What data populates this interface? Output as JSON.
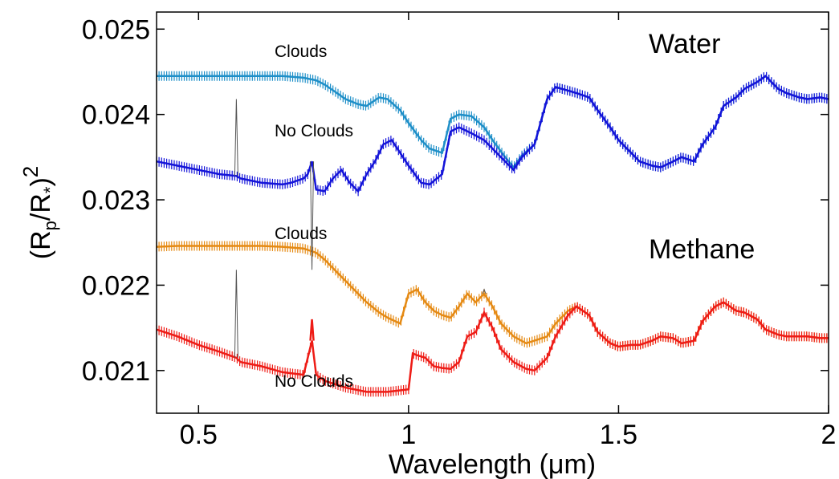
{
  "chart_data": {
    "type": "line",
    "title": "",
    "xlabel": "Wavelength (μm)",
    "ylabel": "(R_p/R_*)^2",
    "xlim": [
      0.4,
      2.0
    ],
    "ylim": [
      0.0205,
      0.0252
    ],
    "xticks": [
      0.5,
      1,
      1.5,
      2
    ],
    "xtick_labels": [
      "0.5",
      "1",
      "1.5",
      "2"
    ],
    "yticks": [
      0.021,
      0.022,
      0.023,
      0.024,
      0.025
    ],
    "ytick_labels": [
      "0.021",
      "0.022",
      "0.023",
      "0.024",
      "0.025"
    ],
    "grid": false,
    "legend": "none",
    "annotations": {
      "water": "Water",
      "methane": "Methane",
      "water_clouds": "Clouds",
      "water_no_clouds": "No Clouds",
      "methane_clouds": "Clouds",
      "methane_no_clouds": "No Clouds"
    },
    "series": [
      {
        "id": "water-clouds",
        "color": "#1e8fc8",
        "x": [
          0.4,
          0.45,
          0.5,
          0.55,
          0.6,
          0.65,
          0.7,
          0.75,
          0.78,
          0.8,
          0.83,
          0.85,
          0.88,
          0.9,
          0.93,
          0.95,
          0.98,
          1.0,
          1.03,
          1.05,
          1.08,
          1.1,
          1.12,
          1.15,
          1.18,
          1.2,
          1.23,
          1.25,
          1.27,
          1.3,
          1.33,
          1.35,
          1.38,
          1.4,
          1.43,
          1.45,
          1.48,
          1.5,
          1.53,
          1.55,
          1.58,
          1.6,
          1.63,
          1.65,
          1.68,
          1.7,
          1.73,
          1.75,
          1.78,
          1.8,
          1.83,
          1.85,
          1.88,
          1.9,
          1.93,
          1.95,
          1.98,
          2.0
        ],
        "y": [
          0.02445,
          0.02445,
          0.02445,
          0.02445,
          0.02445,
          0.02445,
          0.02445,
          0.02443,
          0.0244,
          0.02435,
          0.02425,
          0.02418,
          0.02412,
          0.0241,
          0.0242,
          0.02418,
          0.02405,
          0.0239,
          0.0237,
          0.0236,
          0.02355,
          0.02395,
          0.024,
          0.02398,
          0.02385,
          0.0237,
          0.0235,
          0.02338,
          0.02352,
          0.02365,
          0.02418,
          0.02432,
          0.02428,
          0.02425,
          0.0242,
          0.02405,
          0.02385,
          0.0237,
          0.02355,
          0.02345,
          0.0234,
          0.02338,
          0.02345,
          0.0235,
          0.02345,
          0.02365,
          0.02385,
          0.0241,
          0.0242,
          0.0243,
          0.02438,
          0.02445,
          0.0243,
          0.02425,
          0.0242,
          0.02418,
          0.0242,
          0.02418
        ]
      },
      {
        "id": "water-no-clouds",
        "color": "#1414d9",
        "x": [
          0.4,
          0.45,
          0.5,
          0.55,
          0.59,
          0.6,
          0.65,
          0.7,
          0.72,
          0.75,
          0.76,
          0.77,
          0.78,
          0.8,
          0.82,
          0.84,
          0.86,
          0.88,
          0.9,
          0.92,
          0.94,
          0.96,
          0.98,
          1.0,
          1.03,
          1.05,
          1.08,
          1.1,
          1.12,
          1.15,
          1.18,
          1.2,
          1.23,
          1.25,
          1.27,
          1.3,
          1.33,
          1.35,
          1.38,
          1.4,
          1.43,
          1.45,
          1.48,
          1.5,
          1.53,
          1.55,
          1.58,
          1.6,
          1.63,
          1.65,
          1.68,
          1.7,
          1.73,
          1.75,
          1.78,
          1.8,
          1.83,
          1.85,
          1.88,
          1.9,
          1.93,
          1.95,
          1.98,
          2.0
        ],
        "y": [
          0.02345,
          0.0234,
          0.02335,
          0.0233,
          0.02328,
          0.02325,
          0.0232,
          0.02318,
          0.0232,
          0.02325,
          0.0233,
          0.02345,
          0.02312,
          0.0231,
          0.02325,
          0.02335,
          0.0232,
          0.0231,
          0.0233,
          0.02345,
          0.02365,
          0.0237,
          0.02355,
          0.0234,
          0.0232,
          0.02318,
          0.0233,
          0.0238,
          0.02385,
          0.02378,
          0.0237,
          0.0236,
          0.02345,
          0.02335,
          0.0235,
          0.02365,
          0.02418,
          0.02432,
          0.02428,
          0.02425,
          0.0242,
          0.02405,
          0.02385,
          0.0237,
          0.02355,
          0.02345,
          0.0234,
          0.02338,
          0.02345,
          0.0235,
          0.02345,
          0.02365,
          0.02385,
          0.0241,
          0.0242,
          0.0243,
          0.02438,
          0.02445,
          0.0243,
          0.02425,
          0.0242,
          0.02418,
          0.0242,
          0.02418
        ]
      },
      {
        "id": "methane-clouds",
        "color": "#e58a14",
        "x": [
          0.4,
          0.45,
          0.5,
          0.55,
          0.6,
          0.65,
          0.7,
          0.75,
          0.78,
          0.8,
          0.83,
          0.85,
          0.88,
          0.9,
          0.93,
          0.95,
          0.98,
          1.0,
          1.02,
          1.04,
          1.06,
          1.08,
          1.1,
          1.12,
          1.14,
          1.16,
          1.18,
          1.2,
          1.22,
          1.25,
          1.28,
          1.3,
          1.33,
          1.35,
          1.38,
          1.4,
          1.43,
          1.45,
          1.48,
          1.5,
          1.53,
          1.55,
          1.58,
          1.6,
          1.63,
          1.65,
          1.68,
          1.7,
          1.73,
          1.75,
          1.78,
          1.8,
          1.83,
          1.85,
          1.88,
          1.9,
          1.93,
          1.95,
          1.98,
          2.0
        ],
        "y": [
          0.02245,
          0.02246,
          0.02246,
          0.02246,
          0.02246,
          0.02246,
          0.02245,
          0.02243,
          0.02238,
          0.0223,
          0.02215,
          0.02205,
          0.0219,
          0.0218,
          0.02168,
          0.02162,
          0.02155,
          0.0219,
          0.02195,
          0.0218,
          0.0217,
          0.02165,
          0.02162,
          0.02175,
          0.0219,
          0.0218,
          0.0219,
          0.02175,
          0.02155,
          0.0214,
          0.02132,
          0.02135,
          0.0214,
          0.02155,
          0.0217,
          0.02175,
          0.02165,
          0.02145,
          0.02132,
          0.02128,
          0.0213,
          0.0213,
          0.02135,
          0.0214,
          0.02138,
          0.02132,
          0.02135,
          0.02158,
          0.02175,
          0.0218,
          0.0217,
          0.02168,
          0.0216,
          0.02148,
          0.02142,
          0.0214,
          0.0214,
          0.0214,
          0.02138,
          0.02138
        ]
      },
      {
        "id": "methane-no-clouds",
        "color": "#ee1c16",
        "x": [
          0.4,
          0.45,
          0.5,
          0.55,
          0.59,
          0.6,
          0.65,
          0.7,
          0.75,
          0.77,
          0.78,
          0.8,
          0.85,
          0.9,
          0.95,
          1.0,
          1.01,
          1.02,
          1.04,
          1.06,
          1.08,
          1.1,
          1.12,
          1.14,
          1.16,
          1.18,
          1.2,
          1.22,
          1.25,
          1.28,
          1.3,
          1.33,
          1.35,
          1.38,
          1.4,
          1.43,
          1.45,
          1.48,
          1.5,
          1.53,
          1.55,
          1.58,
          1.6,
          1.63,
          1.65,
          1.68,
          1.7,
          1.73,
          1.75,
          1.78,
          1.8,
          1.83,
          1.85,
          1.88,
          1.9,
          1.93,
          1.95,
          1.98,
          2.0
        ],
        "y": [
          0.02148,
          0.0214,
          0.0213,
          0.02122,
          0.02115,
          0.0211,
          0.02105,
          0.02098,
          0.02095,
          0.02135,
          0.02095,
          0.02088,
          0.0208,
          0.02075,
          0.02075,
          0.02078,
          0.0212,
          0.02118,
          0.02115,
          0.02105,
          0.02103,
          0.02102,
          0.0211,
          0.0214,
          0.02145,
          0.02168,
          0.0215,
          0.02125,
          0.0211,
          0.02102,
          0.021,
          0.02115,
          0.0214,
          0.02165,
          0.02175,
          0.02165,
          0.02145,
          0.02132,
          0.02128,
          0.0213,
          0.0213,
          0.02135,
          0.0214,
          0.02138,
          0.02132,
          0.02135,
          0.02158,
          0.02175,
          0.0218,
          0.0217,
          0.02168,
          0.0216,
          0.02148,
          0.02142,
          0.0214,
          0.0214,
          0.0214,
          0.02138,
          0.02138
        ]
      },
      {
        "id": "unbinned-spikes",
        "color": "#555555",
        "x": [
          0.59,
          0.77,
          1.18
        ],
        "y": [
          0.02418,
          0.02218,
          0.02195
        ]
      }
    ]
  }
}
